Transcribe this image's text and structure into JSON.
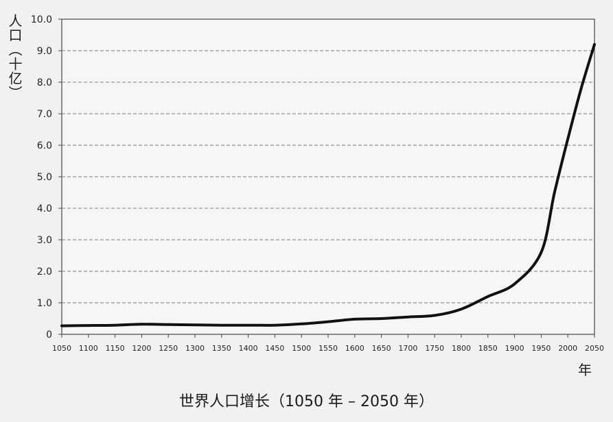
{
  "chart_data": {
    "type": "line",
    "title": "世界人口增长（1050 年 – 2050 年）",
    "ylabel": "人口（十亿）",
    "xlabel": "年",
    "xlim": [
      1050,
      2050
    ],
    "ylim": [
      0,
      10
    ],
    "grid": true,
    "legend": "none",
    "x_ticks": [
      "1050",
      "1100",
      "1150",
      "1200",
      "1250",
      "1300",
      "1350",
      "1400",
      "1450",
      "1500",
      "1550",
      "1600",
      "1650",
      "1700",
      "1750",
      "1800",
      "1850",
      "1900",
      "1950",
      "2000",
      "2050"
    ],
    "y_ticks": [
      "0",
      "1.0",
      "2.0",
      "3.0",
      "4.0",
      "5.0",
      "6.0",
      "7.0",
      "8.0",
      "9.0",
      "10.0"
    ],
    "series": [
      {
        "x": [
          1050,
          1100,
          1150,
          1200,
          1250,
          1300,
          1350,
          1400,
          1450,
          1500,
          1550,
          1600,
          1650,
          1700,
          1750,
          1800,
          1850,
          1900,
          1950,
          1975,
          2000,
          2025,
          2050
        ],
        "values": [
          0.27,
          0.28,
          0.29,
          0.32,
          0.31,
          0.3,
          0.29,
          0.29,
          0.29,
          0.33,
          0.4,
          0.48,
          0.5,
          0.55,
          0.6,
          0.8,
          1.2,
          1.6,
          2.6,
          4.5,
          6.2,
          7.8,
          9.2
        ]
      }
    ]
  }
}
